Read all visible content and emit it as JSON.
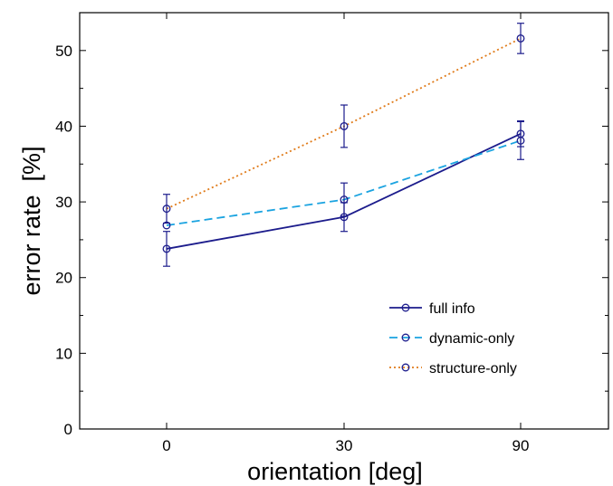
{
  "chart_data": {
    "type": "line",
    "title": "",
    "xlabel": "orientation [deg]",
    "ylabel": "error rate  [%]",
    "categories": [
      "0",
      "30",
      "90"
    ],
    "ylim": [
      0,
      55
    ],
    "y_ticks": [
      "0",
      "10",
      "20",
      "30",
      "40",
      "50"
    ],
    "grid": false,
    "legend_position": "bottom-right",
    "series": [
      {
        "name": "full info",
        "values": [
          23.8,
          28.0,
          39.0
        ],
        "error": [
          2.3,
          1.9,
          1.7
        ],
        "color": "#1c1c8c",
        "dash": "solid"
      },
      {
        "name": "dynamic-only",
        "values": [
          26.9,
          30.3,
          38.1
        ],
        "error": [
          0,
          2.2,
          2.5
        ],
        "color": "#1aa3e0",
        "dash": "dashed"
      },
      {
        "name": "structure-only",
        "values": [
          29.1,
          40.0,
          51.6
        ],
        "error": [
          1.9,
          2.8,
          2.0
        ],
        "color": "#e07b1a",
        "dash": "dotted"
      }
    ]
  }
}
